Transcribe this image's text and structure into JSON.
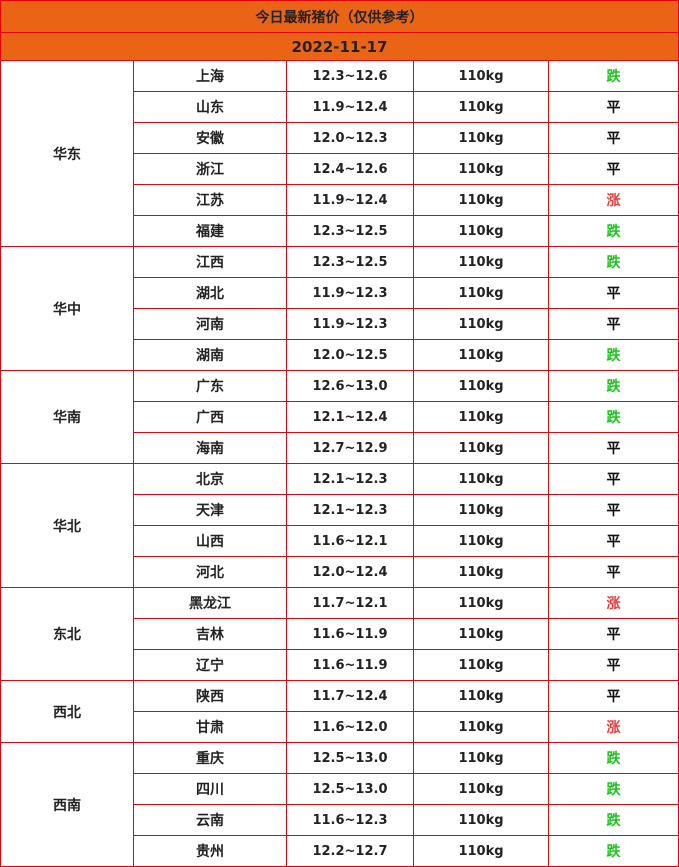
{
  "title": "今日最新猪价（仅供参考）",
  "date": "2022-11-17",
  "colors": {
    "header_bg": "#ea6415",
    "border": "#e8000b",
    "down": "#1ec21e",
    "up": "#f03c3c",
    "flat": "#111111"
  },
  "regions": [
    {
      "name": "华东",
      "rows": [
        {
          "province": "上海",
          "price": "12.3~12.6",
          "weight": "110kg",
          "trend": "跌"
        },
        {
          "province": "山东",
          "price": "11.9~12.4",
          "weight": "110kg",
          "trend": "平"
        },
        {
          "province": "安徽",
          "price": "12.0~12.3",
          "weight": "110kg",
          "trend": "平"
        },
        {
          "province": "浙江",
          "price": "12.4~12.6",
          "weight": "110kg",
          "trend": "平"
        },
        {
          "province": "江苏",
          "price": "11.9~12.4",
          "weight": "110kg",
          "trend": "涨"
        },
        {
          "province": "福建",
          "price": "12.3~12.5",
          "weight": "110kg",
          "trend": "跌"
        }
      ]
    },
    {
      "name": "华中",
      "rows": [
        {
          "province": "江西",
          "price": "12.3~12.5",
          "weight": "110kg",
          "trend": "跌"
        },
        {
          "province": "湖北",
          "price": "11.9~12.3",
          "weight": "110kg",
          "trend": "平"
        },
        {
          "province": "河南",
          "price": "11.9~12.3",
          "weight": "110kg",
          "trend": "平"
        },
        {
          "province": "湖南",
          "price": "12.0~12.5",
          "weight": "110kg",
          "trend": "跌"
        }
      ]
    },
    {
      "name": "华南",
      "rows": [
        {
          "province": "广东",
          "price": "12.6~13.0",
          "weight": "110kg",
          "trend": "跌"
        },
        {
          "province": "广西",
          "price": "12.1~12.4",
          "weight": "110kg",
          "trend": "跌"
        },
        {
          "province": "海南",
          "price": "12.7~12.9",
          "weight": "110kg",
          "trend": "平"
        }
      ]
    },
    {
      "name": "华北",
      "rows": [
        {
          "province": "北京",
          "price": "12.1~12.3",
          "weight": "110kg",
          "trend": "平"
        },
        {
          "province": "天津",
          "price": "12.1~12.3",
          "weight": "110kg",
          "trend": "平"
        },
        {
          "province": "山西",
          "price": "11.6~12.1",
          "weight": "110kg",
          "trend": "平"
        },
        {
          "province": "河北",
          "price": "12.0~12.4",
          "weight": "110kg",
          "trend": "平"
        }
      ]
    },
    {
      "name": "东北",
      "rows": [
        {
          "province": "黑龙江",
          "price": "11.7~12.1",
          "weight": "110kg",
          "trend": "涨"
        },
        {
          "province": "吉林",
          "price": "11.6~11.9",
          "weight": "110kg",
          "trend": "平"
        },
        {
          "province": "辽宁",
          "price": "11.6~11.9",
          "weight": "110kg",
          "trend": "平"
        }
      ]
    },
    {
      "name": "西北",
      "rows": [
        {
          "province": "陕西",
          "price": "11.7~12.4",
          "weight": "110kg",
          "trend": "平"
        },
        {
          "province": "甘肃",
          "price": "11.6~12.0",
          "weight": "110kg",
          "trend": "涨"
        }
      ]
    },
    {
      "name": "西南",
      "rows": [
        {
          "province": "重庆",
          "price": "12.5~13.0",
          "weight": "110kg",
          "trend": "跌"
        },
        {
          "province": "四川",
          "price": "12.5~13.0",
          "weight": "110kg",
          "trend": "跌"
        },
        {
          "province": "云南",
          "price": "11.6~12.3",
          "weight": "110kg",
          "trend": "跌"
        },
        {
          "province": "贵州",
          "price": "12.2~12.7",
          "weight": "110kg",
          "trend": "跌"
        }
      ]
    }
  ]
}
